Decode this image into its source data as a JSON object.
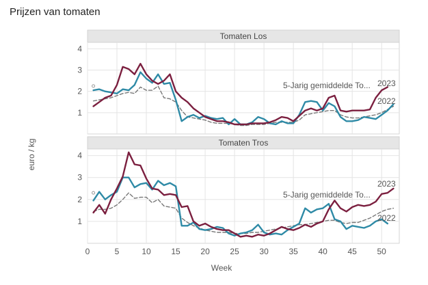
{
  "title": "Prijzen van tomaten",
  "chart_data": {
    "type": "line",
    "xlabel": "Week",
    "ylabel": "euro / kg",
    "xlim": [
      0,
      53
    ],
    "xticks": [
      0,
      5,
      10,
      15,
      20,
      25,
      30,
      35,
      40,
      45,
      50
    ],
    "ylim": [
      0,
      4.3
    ],
    "yticks": [
      1,
      2,
      3,
      4
    ],
    "grid": true,
    "colors": {
      "2023": "#7b1f3f",
      "2022": "#2e8aa6",
      "5yr": "#777777",
      "strip_bg": "#e6e6e6",
      "grid": "#e4e4e4"
    },
    "panels": [
      {
        "label": "Tomaten Los",
        "annotations": {
          "avg": "5-Jarig gemiddelde To...",
          "y2023": "2023",
          "y2022": "2022"
        },
        "series": [
          {
            "name": "2023",
            "key": "2023",
            "x": [
              1,
              2,
              3,
              4,
              5,
              6,
              7,
              8,
              9,
              10,
              11,
              12,
              13,
              14,
              15,
              16,
              17,
              18,
              19,
              20,
              21,
              22,
              23,
              24,
              25,
              26,
              27,
              28,
              29,
              30,
              31,
              32,
              33,
              34,
              35,
              36,
              37,
              38,
              39,
              40,
              41,
              42,
              43,
              44,
              45,
              46,
              47,
              48,
              49,
              50,
              51,
              52
            ],
            "y": [
              1.3,
              1.5,
              1.7,
              1.8,
              2.3,
              3.15,
              3.05,
              2.8,
              3.3,
              2.8,
              2.5,
              2.35,
              2.5,
              2.8,
              2.0,
              1.7,
              1.5,
              1.2,
              1.0,
              0.8,
              0.7,
              0.6,
              0.6,
              0.55,
              0.45,
              0.45,
              0.45,
              0.5,
              0.5,
              0.5,
              0.55,
              0.65,
              0.8,
              0.75,
              0.6,
              0.85,
              1.1,
              1.2,
              1.1,
              1.2,
              1.7,
              1.8,
              1.1,
              1.05,
              1.1,
              1.1,
              1.1,
              1.15,
              1.7,
              2.05,
              2.2,
              null
            ]
          },
          {
            "name": "2022",
            "key": "2022",
            "x": [
              1,
              2,
              3,
              4,
              5,
              6,
              7,
              8,
              9,
              10,
              11,
              12,
              13,
              14,
              15,
              16,
              17,
              18,
              19,
              20,
              21,
              22,
              23,
              24,
              25,
              26,
              27,
              28,
              29,
              30,
              31,
              32,
              33,
              34,
              35,
              36,
              37,
              38,
              39,
              40,
              41,
              42,
              43,
              44,
              45,
              46,
              47,
              48,
              49,
              50,
              51,
              52
            ],
            "y": [
              2.05,
              2.1,
              2.0,
              1.95,
              1.9,
              2.1,
              2.05,
              2.3,
              2.9,
              2.6,
              2.4,
              2.8,
              2.35,
              2.4,
              1.6,
              0.6,
              0.8,
              0.9,
              0.75,
              0.85,
              0.75,
              0.7,
              0.75,
              0.45,
              0.7,
              0.45,
              0.45,
              0.55,
              0.8,
              0.7,
              0.5,
              0.45,
              0.6,
              0.5,
              0.5,
              0.9,
              1.5,
              1.55,
              1.5,
              1.1,
              1.45,
              1.3,
              0.8,
              0.6,
              0.6,
              0.65,
              0.8,
              0.75,
              0.7,
              0.9,
              1.1,
              1.4
            ]
          },
          {
            "name": "5-Jarig gemiddelde To...",
            "key": "5yr",
            "dashed": true,
            "x": [
              1,
              2,
              3,
              4,
              5,
              6,
              7,
              8,
              9,
              10,
              11,
              12,
              13,
              14,
              15,
              16,
              17,
              18,
              19,
              20,
              21,
              22,
              23,
              24,
              25,
              26,
              27,
              28,
              29,
              30,
              31,
              32,
              33,
              34,
              35,
              36,
              37,
              38,
              39,
              40,
              41,
              42,
              43,
              44,
              45,
              46,
              47,
              48,
              49,
              50,
              51,
              52
            ],
            "y": [
              1.55,
              1.6,
              1.65,
              1.7,
              1.8,
              1.9,
              1.95,
              1.9,
              2.2,
              2.05,
              2.05,
              2.25,
              1.7,
              1.65,
              1.5,
              1.1,
              0.8,
              0.75,
              0.7,
              0.65,
              0.55,
              0.5,
              0.5,
              0.5,
              0.45,
              0.4,
              0.4,
              0.45,
              0.45,
              0.45,
              0.5,
              0.55,
              0.55,
              0.55,
              0.55,
              0.65,
              0.9,
              0.95,
              1.0,
              1.05,
              1.1,
              1.1,
              0.9,
              0.8,
              0.75,
              0.75,
              0.8,
              0.85,
              0.9,
              1.0,
              1.15,
              1.3
            ]
          }
        ],
        "marker": {
          "x": 1,
          "y": 2.25
        }
      },
      {
        "label": "Tomaten Tros",
        "annotations": {
          "avg": "5-Jarig gemiddelde To...",
          "y2023": "2023",
          "y2022": "2022"
        },
        "series": [
          {
            "name": "2023",
            "key": "2023",
            "x": [
              1,
              2,
              3,
              4,
              5,
              6,
              7,
              8,
              9,
              10,
              11,
              12,
              13,
              14,
              15,
              16,
              17,
              18,
              19,
              20,
              21,
              22,
              23,
              24,
              25,
              26,
              27,
              28,
              29,
              30,
              31,
              32,
              33,
              34,
              35,
              36,
              37,
              38,
              39,
              40,
              41,
              42,
              43,
              44,
              45,
              46,
              47,
              48,
              49,
              50,
              51,
              52
            ],
            "y": [
              1.4,
              1.75,
              1.35,
              2.0,
              2.5,
              3.05,
              4.15,
              3.6,
              3.55,
              2.95,
              2.5,
              2.45,
              2.2,
              2.25,
              2.2,
              1.65,
              1.7,
              1.0,
              0.8,
              0.9,
              0.75,
              0.65,
              0.6,
              0.6,
              0.45,
              0.3,
              0.35,
              0.3,
              0.4,
              0.35,
              0.45,
              0.6,
              0.75,
              0.65,
              0.6,
              0.7,
              0.85,
              0.75,
              0.9,
              1.0,
              1.55,
              1.95,
              1.6,
              1.45,
              1.65,
              1.75,
              1.7,
              1.75,
              1.9,
              2.25,
              2.3,
              2.5
            ]
          },
          {
            "name": "2022",
            "key": "2022",
            "x": [
              1,
              2,
              3,
              4,
              5,
              6,
              7,
              8,
              9,
              10,
              11,
              12,
              13,
              14,
              15,
              16,
              17,
              18,
              19,
              20,
              21,
              22,
              23,
              24,
              25,
              26,
              27,
              28,
              29,
              30,
              31,
              32,
              33,
              34,
              35,
              36,
              37,
              38,
              39,
              40,
              41,
              42,
              43,
              44,
              45,
              46,
              47,
              48,
              49,
              50,
              51,
              52
            ],
            "y": [
              1.95,
              2.35,
              2.0,
              2.2,
              2.35,
              3.0,
              3.0,
              2.55,
              2.7,
              2.75,
              2.45,
              2.85,
              2.65,
              2.75,
              2.6,
              0.8,
              0.8,
              0.95,
              0.65,
              0.6,
              0.65,
              0.75,
              0.7,
              0.45,
              0.35,
              0.45,
              0.5,
              0.6,
              0.85,
              0.5,
              0.4,
              0.45,
              0.4,
              0.6,
              0.75,
              0.9,
              1.6,
              1.4,
              1.55,
              1.6,
              1.8,
              1.1,
              1.0,
              0.65,
              0.8,
              0.75,
              0.7,
              0.8,
              1.0,
              1.1,
              0.9,
              null
            ]
          },
          {
            "name": "5-Jarig gemiddelde To...",
            "key": "5yr",
            "dashed": true,
            "x": [
              1,
              2,
              3,
              4,
              5,
              6,
              7,
              8,
              9,
              10,
              11,
              12,
              13,
              14,
              15,
              16,
              17,
              18,
              19,
              20,
              21,
              22,
              23,
              24,
              25,
              26,
              27,
              28,
              29,
              30,
              31,
              32,
              33,
              34,
              35,
              36,
              37,
              38,
              39,
              40,
              41,
              42,
              43,
              44,
              45,
              46,
              47,
              48,
              49,
              50,
              51,
              52
            ],
            "y": [
              1.45,
              1.55,
              1.55,
              1.6,
              1.75,
              2.0,
              2.3,
              2.05,
              2.1,
              2.1,
              1.85,
              2.0,
              1.7,
              1.65,
              1.6,
              1.15,
              0.95,
              0.8,
              0.7,
              0.6,
              0.55,
              0.5,
              0.5,
              0.5,
              0.45,
              0.45,
              0.45,
              0.5,
              0.5,
              0.55,
              0.6,
              0.65,
              0.7,
              0.75,
              0.8,
              0.85,
              0.85,
              0.9,
              0.95,
              1.0,
              1.05,
              1.05,
              0.95,
              0.9,
              0.95,
              0.95,
              1.05,
              1.15,
              1.3,
              1.45,
              1.55,
              1.6
            ]
          }
        ],
        "marker": {
          "x": 1,
          "y": 2.3
        }
      }
    ]
  }
}
